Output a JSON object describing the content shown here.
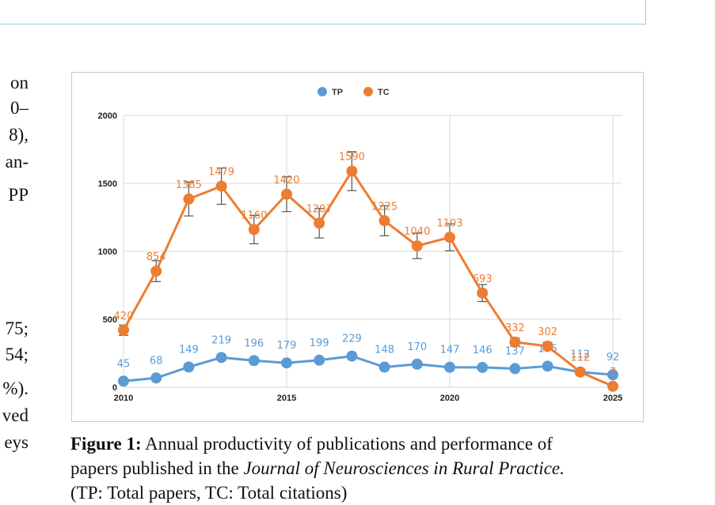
{
  "left_text_fragments": [
    "on",
    "0–",
    "8),",
    "an-",
    "PP",
    "75;",
    "54;",
    "%).",
    "ved",
    "eys"
  ],
  "caption": {
    "label": "Figure 1:",
    "text_a": "Annual productivity of publications and performance of",
    "text_b": "papers published in the",
    "journal": "Journal of Neurosciences in Rural Practice.",
    "text_c": "(TP: Total papers, TC: Total citations)"
  },
  "colors": {
    "tp": "#5b9bd5",
    "tc": "#ed7d31",
    "error_bar": "#555555",
    "grid": "#d9d9d9"
  },
  "chart_data": {
    "type": "line",
    "x": [
      2010,
      2011,
      2012,
      2013,
      2014,
      2015,
      2016,
      2017,
      2018,
      2019,
      2020,
      2021,
      2022,
      2023,
      2024,
      2025
    ],
    "x_ticks": [
      "2010",
      "2015",
      "2020",
      "2025"
    ],
    "y_ticks": [
      "0",
      "500",
      "1000",
      "1500",
      "2000"
    ],
    "xlim": [
      2010,
      2025
    ],
    "ylim": [
      0,
      2000
    ],
    "grid": true,
    "legend_position": "top-center",
    "series": [
      {
        "name": "TP",
        "values": [
          45,
          68,
          149,
          219,
          196,
          179,
          199,
          229,
          148,
          170,
          147,
          146,
          137,
          155,
          112,
          92
        ],
        "labels": [
          "45",
          "68",
          "149",
          "219",
          "196",
          "179",
          "199",
          "229",
          "148",
          "170",
          "147",
          "146",
          "137",
          "155",
          "112",
          "92"
        ]
      },
      {
        "name": "TC",
        "values": [
          420,
          854,
          1385,
          1479,
          1160,
          1420,
          1207,
          1590,
          1225,
          1040,
          1103,
          693,
          332,
          302,
          112,
          7
        ],
        "labels": [
          "420",
          "854",
          "1385",
          "1479",
          "1160",
          "1420",
          "1207",
          "1590",
          "1225",
          "1040",
          "1103",
          "693",
          "332",
          "302",
          "112",
          "7"
        ]
      }
    ]
  }
}
